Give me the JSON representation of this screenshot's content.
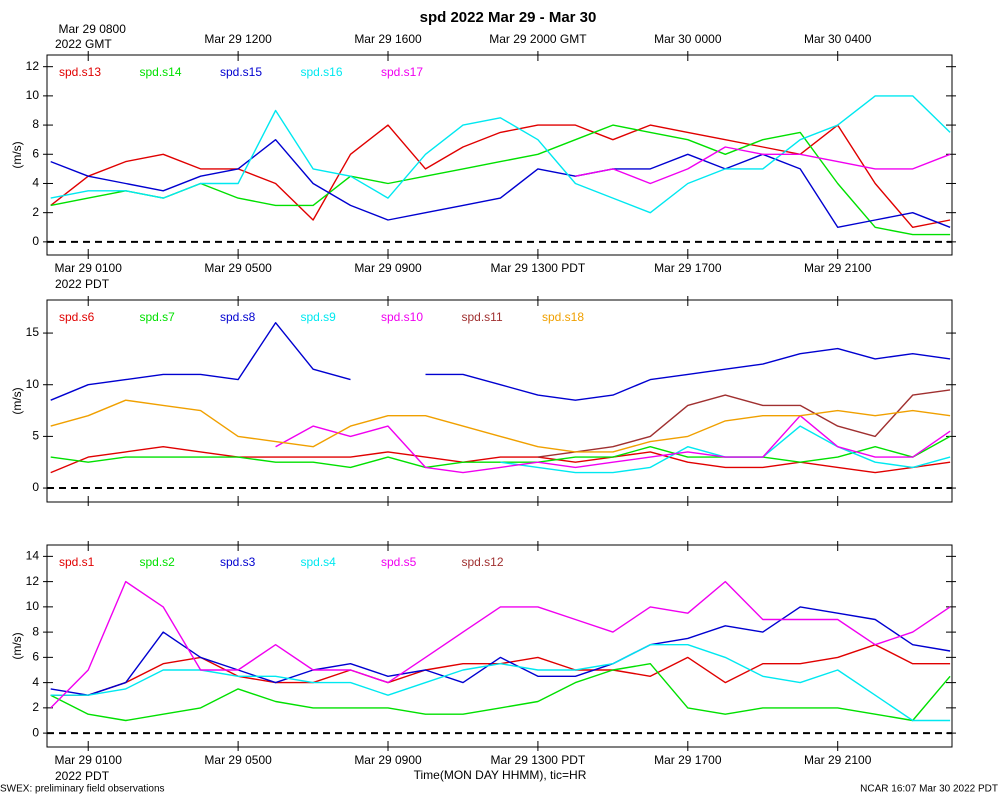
{
  "chart_data": [
    {
      "type": "line",
      "title": "spd 2022 Mar 29 - Mar 30",
      "ylabel": "(m/s)",
      "x": [
        0,
        1,
        2,
        3,
        4,
        5,
        6,
        7,
        8,
        9,
        10,
        11,
        12,
        13,
        14,
        15,
        16,
        17,
        18,
        19,
        20,
        21,
        22,
        23,
        24
      ],
      "xlim": [
        -0.1,
        24.05
      ],
      "ylim": [
        -0.9,
        12.8
      ],
      "yticks": [
        0,
        2,
        4,
        6,
        8,
        10,
        12
      ],
      "xticks": [
        {
          "value": 1,
          "label": "Mar 29 0100"
        },
        {
          "value": 5,
          "label": "Mar 29 0500"
        },
        {
          "value": 9,
          "label": "Mar 29 0900"
        },
        {
          "value": 13,
          "label": "Mar 29 1300 PDT"
        },
        {
          "value": 17,
          "label": "Mar 29 1700"
        },
        {
          "value": 21,
          "label": "Mar 29 2100"
        }
      ],
      "x_sublabel": "2022 PDT",
      "x2ticks": [
        {
          "value": 1,
          "label": "Mar 29 0800"
        },
        {
          "value": 5,
          "label": "Mar 29 1200"
        },
        {
          "value": 9,
          "label": "Mar 29 1600"
        },
        {
          "value": 13,
          "label": "Mar 29 2000 GMT"
        },
        {
          "value": 17,
          "label": "Mar 30 0000"
        },
        {
          "value": 21,
          "label": "Mar 30 0400"
        }
      ],
      "x2_sublabel": "2022 GMT",
      "show_xtick_labels": true,
      "zero_line": true,
      "legend": "top-left",
      "series": [
        {
          "name": "spd.s13",
          "color": "#e00000",
          "values": [
            2.5,
            4.5,
            5.5,
            6,
            5,
            5,
            4,
            1.5,
            6,
            8,
            5,
            6.5,
            7.5,
            8,
            8,
            7,
            8,
            7.5,
            7,
            6.5,
            6,
            8,
            4,
            1,
            1.5
          ]
        },
        {
          "name": "spd.s14",
          "color": "#00e000",
          "values": [
            2.5,
            3,
            3.5,
            3,
            4,
            3,
            2.5,
            2.5,
            4.5,
            4,
            4.5,
            5,
            5.5,
            6,
            7,
            8,
            7.5,
            7,
            6,
            7,
            7.5,
            4,
            1,
            0.5,
            0.5
          ]
        },
        {
          "name": "spd.s15",
          "color": "#0000d0",
          "values": [
            5.5,
            4.5,
            4,
            3.5,
            4.5,
            5,
            7,
            4,
            2.5,
            1.5,
            2,
            2.5,
            3,
            5,
            4.5,
            5,
            5,
            6,
            5,
            6,
            5,
            1,
            1.5,
            2,
            1
          ]
        },
        {
          "name": "spd.s16",
          "color": "#00e8f0",
          "values": [
            3,
            3.5,
            3.5,
            3,
            4,
            4,
            9,
            5,
            4.5,
            3,
            6,
            8,
            8.5,
            7,
            4,
            3,
            2,
            4,
            5,
            5,
            7,
            8,
            10,
            10,
            7.5
          ]
        },
        {
          "name": "spd.s17",
          "color": "#f000f0",
          "values": [
            null,
            null,
            null,
            null,
            null,
            null,
            null,
            null,
            null,
            null,
            null,
            null,
            null,
            null,
            4.5,
            5,
            4,
            5,
            6.5,
            6,
            6,
            5.5,
            5,
            5,
            6
          ]
        }
      ]
    },
    {
      "type": "line",
      "ylabel": "(m/s)",
      "x": [
        0,
        1,
        2,
        3,
        4,
        5,
        6,
        7,
        8,
        9,
        10,
        11,
        12,
        13,
        14,
        15,
        16,
        17,
        18,
        19,
        20,
        21,
        22,
        23,
        24
      ],
      "xlim": [
        -0.1,
        24.05
      ],
      "ylim": [
        -1.35,
        18.2
      ],
      "yticks": [
        0,
        5,
        10,
        15
      ],
      "xticks": [
        1,
        5,
        9,
        13,
        17,
        21
      ],
      "show_xtick_labels": false,
      "zero_line": true,
      "legend": "top-left",
      "series": [
        {
          "name": "spd.s6",
          "color": "#e00000",
          "values": [
            1.5,
            3,
            3.5,
            4,
            3.5,
            3,
            3,
            3,
            3,
            3.5,
            3,
            2.5,
            3,
            3,
            2.5,
            3,
            3.5,
            2.5,
            2,
            2,
            2.5,
            2,
            1.5,
            2,
            2.5
          ]
        },
        {
          "name": "spd.s7",
          "color": "#00e000",
          "values": [
            3,
            2.5,
            3,
            3,
            3,
            3,
            2.5,
            2.5,
            2,
            3,
            2,
            2.5,
            2.5,
            2.5,
            3,
            3,
            4,
            3,
            3,
            3,
            2.5,
            3,
            4,
            3,
            5
          ]
        },
        {
          "name": "spd.s8",
          "color": "#0000d0",
          "values": [
            8.5,
            10,
            10.5,
            11,
            11,
            10.5,
            16,
            11.5,
            10.5,
            null,
            11,
            11,
            10,
            9,
            8.5,
            9,
            10.5,
            11,
            11.5,
            12,
            13,
            13.5,
            12.5,
            13,
            12.5
          ]
        },
        {
          "name": "spd.s9",
          "color": "#00e8f0",
          "values": [
            null,
            null,
            null,
            null,
            null,
            null,
            null,
            null,
            null,
            null,
            null,
            null,
            2.5,
            2,
            1.5,
            1.5,
            2,
            4,
            3,
            3,
            6,
            4,
            2.5,
            2,
            3
          ]
        },
        {
          "name": "spd.s10",
          "color": "#f000f0",
          "values": [
            null,
            null,
            null,
            null,
            null,
            null,
            4,
            6,
            5,
            6,
            2,
            1.5,
            2,
            2.5,
            2,
            2.5,
            3,
            3.5,
            3,
            3,
            7,
            4,
            3,
            3,
            5.5
          ]
        },
        {
          "name": "spd.s11",
          "color": "#a03030",
          "values": [
            null,
            null,
            null,
            null,
            null,
            null,
            null,
            null,
            null,
            null,
            null,
            null,
            null,
            3,
            3.5,
            4,
            5,
            8,
            9,
            8,
            8,
            6,
            5,
            9,
            9.5
          ]
        },
        {
          "name": "spd.s18",
          "color": "#f0a000",
          "values": [
            6,
            7,
            8.5,
            8,
            7.5,
            5,
            4.5,
            4,
            6,
            7,
            7,
            6,
            5,
            4,
            3.5,
            3.5,
            4.5,
            5,
            6.5,
            7,
            7,
            7.5,
            7,
            7.5,
            7
          ]
        }
      ]
    },
    {
      "type": "line",
      "ylabel": "(m/s)",
      "xlabel": "Time(MON DAY HHMM), tic=HR",
      "x": [
        0,
        1,
        2,
        3,
        4,
        5,
        6,
        7,
        8,
        9,
        10,
        11,
        12,
        13,
        14,
        15,
        16,
        17,
        18,
        19,
        20,
        21,
        22,
        23,
        24
      ],
      "xlim": [
        -0.1,
        24.05
      ],
      "ylim": [
        -1.1,
        14.9
      ],
      "yticks": [
        0,
        2,
        4,
        6,
        8,
        10,
        12,
        14
      ],
      "xticks": [
        {
          "value": 1,
          "label": "Mar 29 0100"
        },
        {
          "value": 5,
          "label": "Mar 29 0500"
        },
        {
          "value": 9,
          "label": "Mar 29 0900"
        },
        {
          "value": 13,
          "label": "Mar 29 1300 PDT"
        },
        {
          "value": 17,
          "label": "Mar 29 1700"
        },
        {
          "value": 21,
          "label": "Mar 29 2100"
        }
      ],
      "x_sublabel": "2022 PDT",
      "show_xtick_labels": true,
      "zero_line": true,
      "legend": "top-left",
      "series": [
        {
          "name": "spd.s1",
          "color": "#e00000",
          "values": [
            3,
            3,
            4,
            5.5,
            6,
            4.5,
            4,
            4,
            5,
            4,
            5,
            5.5,
            5.5,
            6,
            5,
            5,
            4.5,
            6,
            4,
            5.5,
            5.5,
            6,
            7,
            5.5,
            5.5
          ]
        },
        {
          "name": "spd.s2",
          "color": "#00e000",
          "values": [
            3,
            1.5,
            1,
            1.5,
            2,
            3.5,
            2.5,
            2,
            2,
            2,
            1.5,
            1.5,
            2,
            2.5,
            4,
            5,
            5.5,
            2,
            1.5,
            2,
            2,
            2,
            1.5,
            1,
            4.5
          ]
        },
        {
          "name": "spd.s3",
          "color": "#0000d0",
          "values": [
            3.5,
            3,
            4,
            8,
            6,
            5,
            4,
            5,
            5.5,
            4.5,
            5,
            4,
            6,
            4.5,
            4.5,
            5.5,
            7,
            7.5,
            8.5,
            8,
            10,
            9.5,
            9,
            7,
            6.5
          ]
        },
        {
          "name": "spd.s4",
          "color": "#00e8f0",
          "values": [
            3,
            3,
            3.5,
            5,
            5,
            4.5,
            4.5,
            4,
            4,
            3,
            4,
            5,
            5.5,
            5,
            5,
            5.5,
            7,
            7,
            6,
            4.5,
            4,
            5,
            3,
            1,
            1
          ]
        },
        {
          "name": "spd.s5",
          "color": "#f000f0",
          "values": [
            2,
            5,
            12,
            10,
            5,
            5,
            7,
            5,
            5,
            4,
            6,
            8,
            10,
            10,
            9,
            8,
            10,
            9.5,
            12,
            9,
            9,
            9,
            7,
            8,
            10
          ]
        },
        {
          "name": "spd.s12",
          "color": "#a03030",
          "values": [
            null,
            null,
            null,
            null,
            null,
            null,
            null,
            null,
            null,
            null,
            null,
            null,
            null,
            null,
            null,
            null,
            null,
            null,
            null,
            null,
            null,
            null,
            null,
            null,
            null
          ]
        }
      ]
    }
  ],
  "footer_left": "SWEX: preliminary field observations",
  "footer_right": "NCAR 16:07 Mar 30 2022 PDT"
}
